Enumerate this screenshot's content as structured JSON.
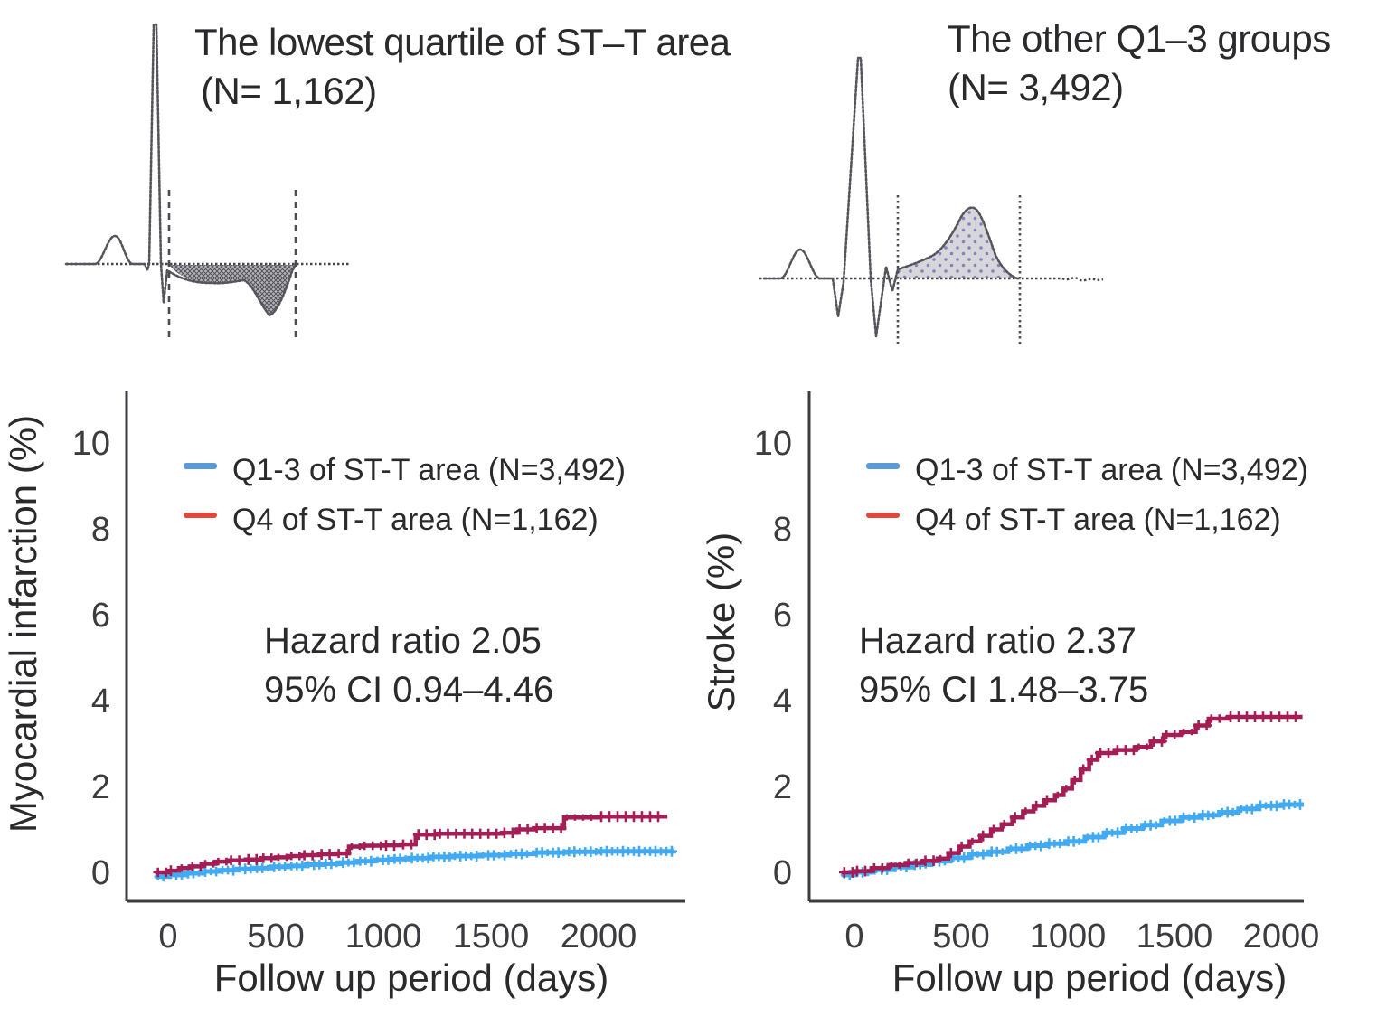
{
  "ecg_panels": [
    {
      "title_line1": "The lowest quartile of ST–T area",
      "title_line2": "(N= 1,162)"
    },
    {
      "title_line1": "The other Q1–3 groups",
      "title_line2": "(N= 3,492)"
    }
  ],
  "chart_data": [
    {
      "type": "line",
      "subtype": "kaplan-meier-cumulative-incidence",
      "ylabel": "Myocardial infarction (%)",
      "xlabel": "Follow up period (days)",
      "ylim": [
        -0.7,
        11.2
      ],
      "xlim": [
        -200,
        2450
      ],
      "yticks": [
        0,
        2,
        4,
        6,
        8,
        10
      ],
      "xticks": [
        0,
        500,
        1000,
        1500,
        2000
      ],
      "grid": false,
      "legend_position": "upper-left-inside",
      "legend": [
        {
          "label": "Q1-3 of ST-T area (N=3,492)",
          "swatch": "#5b9bd5"
        },
        {
          "label": "Q4 of ST-T area (N=1,162)",
          "swatch": "#e2473d"
        }
      ],
      "annotation": [
        "Hazard ratio 2.05",
        "95% CI 0.94–4.46"
      ],
      "series": [
        {
          "name": "Q1-3 of ST-T area (N=3,492)",
          "color": "#41aaf2",
          "step_points": [
            [
              -60,
              -0.1
            ],
            [
              0,
              -0.06
            ],
            [
              80,
              -0.02
            ],
            [
              160,
              0.02
            ],
            [
              240,
              0.05
            ],
            [
              320,
              0.08
            ],
            [
              400,
              0.1
            ],
            [
              480,
              0.13
            ],
            [
              560,
              0.15
            ],
            [
              640,
              0.18
            ],
            [
              720,
              0.2
            ],
            [
              800,
              0.23
            ],
            [
              880,
              0.26
            ],
            [
              960,
              0.29
            ],
            [
              1040,
              0.31
            ],
            [
              1120,
              0.33
            ],
            [
              1220,
              0.36
            ],
            [
              1320,
              0.38
            ],
            [
              1450,
              0.4
            ],
            [
              1580,
              0.43
            ],
            [
              1700,
              0.46
            ],
            [
              1850,
              0.48
            ],
            [
              2000,
              0.49
            ],
            [
              2350,
              0.5
            ]
          ]
        },
        {
          "name": "Q4 of ST-T area (N=1,162)",
          "color": "#a41d55",
          "step_points": [
            [
              -60,
              0
            ],
            [
              0,
              0.04
            ],
            [
              50,
              0.1
            ],
            [
              100,
              0.14
            ],
            [
              160,
              0.2
            ],
            [
              220,
              0.25
            ],
            [
              280,
              0.28
            ],
            [
              360,
              0.3
            ],
            [
              430,
              0.33
            ],
            [
              500,
              0.35
            ],
            [
              560,
              0.38
            ],
            [
              620,
              0.4
            ],
            [
              700,
              0.42
            ],
            [
              780,
              0.44
            ],
            [
              840,
              0.6
            ],
            [
              900,
              0.62
            ],
            [
              1000,
              0.63
            ],
            [
              1080,
              0.65
            ],
            [
              1150,
              0.88
            ],
            [
              1250,
              0.9
            ],
            [
              1400,
              0.9
            ],
            [
              1550,
              0.92
            ],
            [
              1620,
              1.0
            ],
            [
              1700,
              1.03
            ],
            [
              1840,
              1.28
            ],
            [
              2000,
              1.3
            ],
            [
              2320,
              1.3
            ]
          ]
        }
      ]
    },
    {
      "type": "line",
      "subtype": "kaplan-meier-cumulative-incidence",
      "ylabel": "Stroke (%)",
      "xlabel": "Follow up period (days)",
      "ylim": [
        -0.7,
        11.2
      ],
      "xlim": [
        -200,
        2120
      ],
      "yticks": [
        0,
        2,
        4,
        6,
        8,
        10
      ],
      "xticks": [
        0,
        500,
        1000,
        1500,
        2000
      ],
      "grid": false,
      "legend_position": "upper-left-inside",
      "legend": [
        {
          "label": "Q1-3 of ST-T area (N=3,492)",
          "swatch": "#5b9bd5"
        },
        {
          "label": "Q4 of ST-T area (N=1,162)",
          "swatch": "#e2473d"
        }
      ],
      "annotation": [
        "Hazard ratio 2.37",
        "95% CI 1.48–3.75"
      ],
      "series": [
        {
          "name": "Q1-3 of ST-T area (N=3,492)",
          "color": "#41aaf2",
          "step_points": [
            [
              -60,
              -0.06
            ],
            [
              0,
              0
            ],
            [
              90,
              0.06
            ],
            [
              180,
              0.12
            ],
            [
              270,
              0.18
            ],
            [
              360,
              0.26
            ],
            [
              450,
              0.34
            ],
            [
              540,
              0.42
            ],
            [
              630,
              0.48
            ],
            [
              720,
              0.55
            ],
            [
              810,
              0.62
            ],
            [
              900,
              0.67
            ],
            [
              990,
              0.72
            ],
            [
              1080,
              0.82
            ],
            [
              1170,
              0.92
            ],
            [
              1260,
              1.02
            ],
            [
              1350,
              1.1
            ],
            [
              1440,
              1.2
            ],
            [
              1530,
              1.28
            ],
            [
              1620,
              1.33
            ],
            [
              1710,
              1.4
            ],
            [
              1800,
              1.48
            ],
            [
              1890,
              1.55
            ],
            [
              2000,
              1.58
            ],
            [
              2110,
              1.62
            ]
          ]
        },
        {
          "name": "Q4 of ST-T area (N=1,162)",
          "color": "#a41d55",
          "step_points": [
            [
              -60,
              0
            ],
            [
              0,
              0.03
            ],
            [
              80,
              0.1
            ],
            [
              160,
              0.17
            ],
            [
              240,
              0.22
            ],
            [
              320,
              0.27
            ],
            [
              390,
              0.32
            ],
            [
              440,
              0.45
            ],
            [
              490,
              0.6
            ],
            [
              540,
              0.72
            ],
            [
              590,
              0.85
            ],
            [
              640,
              1.0
            ],
            [
              690,
              1.12
            ],
            [
              740,
              1.28
            ],
            [
              790,
              1.42
            ],
            [
              840,
              1.55
            ],
            [
              890,
              1.68
            ],
            [
              940,
              1.8
            ],
            [
              980,
              1.95
            ],
            [
              1020,
              2.15
            ],
            [
              1060,
              2.4
            ],
            [
              1100,
              2.62
            ],
            [
              1140,
              2.78
            ],
            [
              1220,
              2.85
            ],
            [
              1320,
              2.92
            ],
            [
              1390,
              3.05
            ],
            [
              1450,
              3.2
            ],
            [
              1530,
              3.27
            ],
            [
              1600,
              3.42
            ],
            [
              1660,
              3.58
            ],
            [
              1750,
              3.62
            ],
            [
              2100,
              3.62
            ]
          ]
        }
      ]
    }
  ]
}
